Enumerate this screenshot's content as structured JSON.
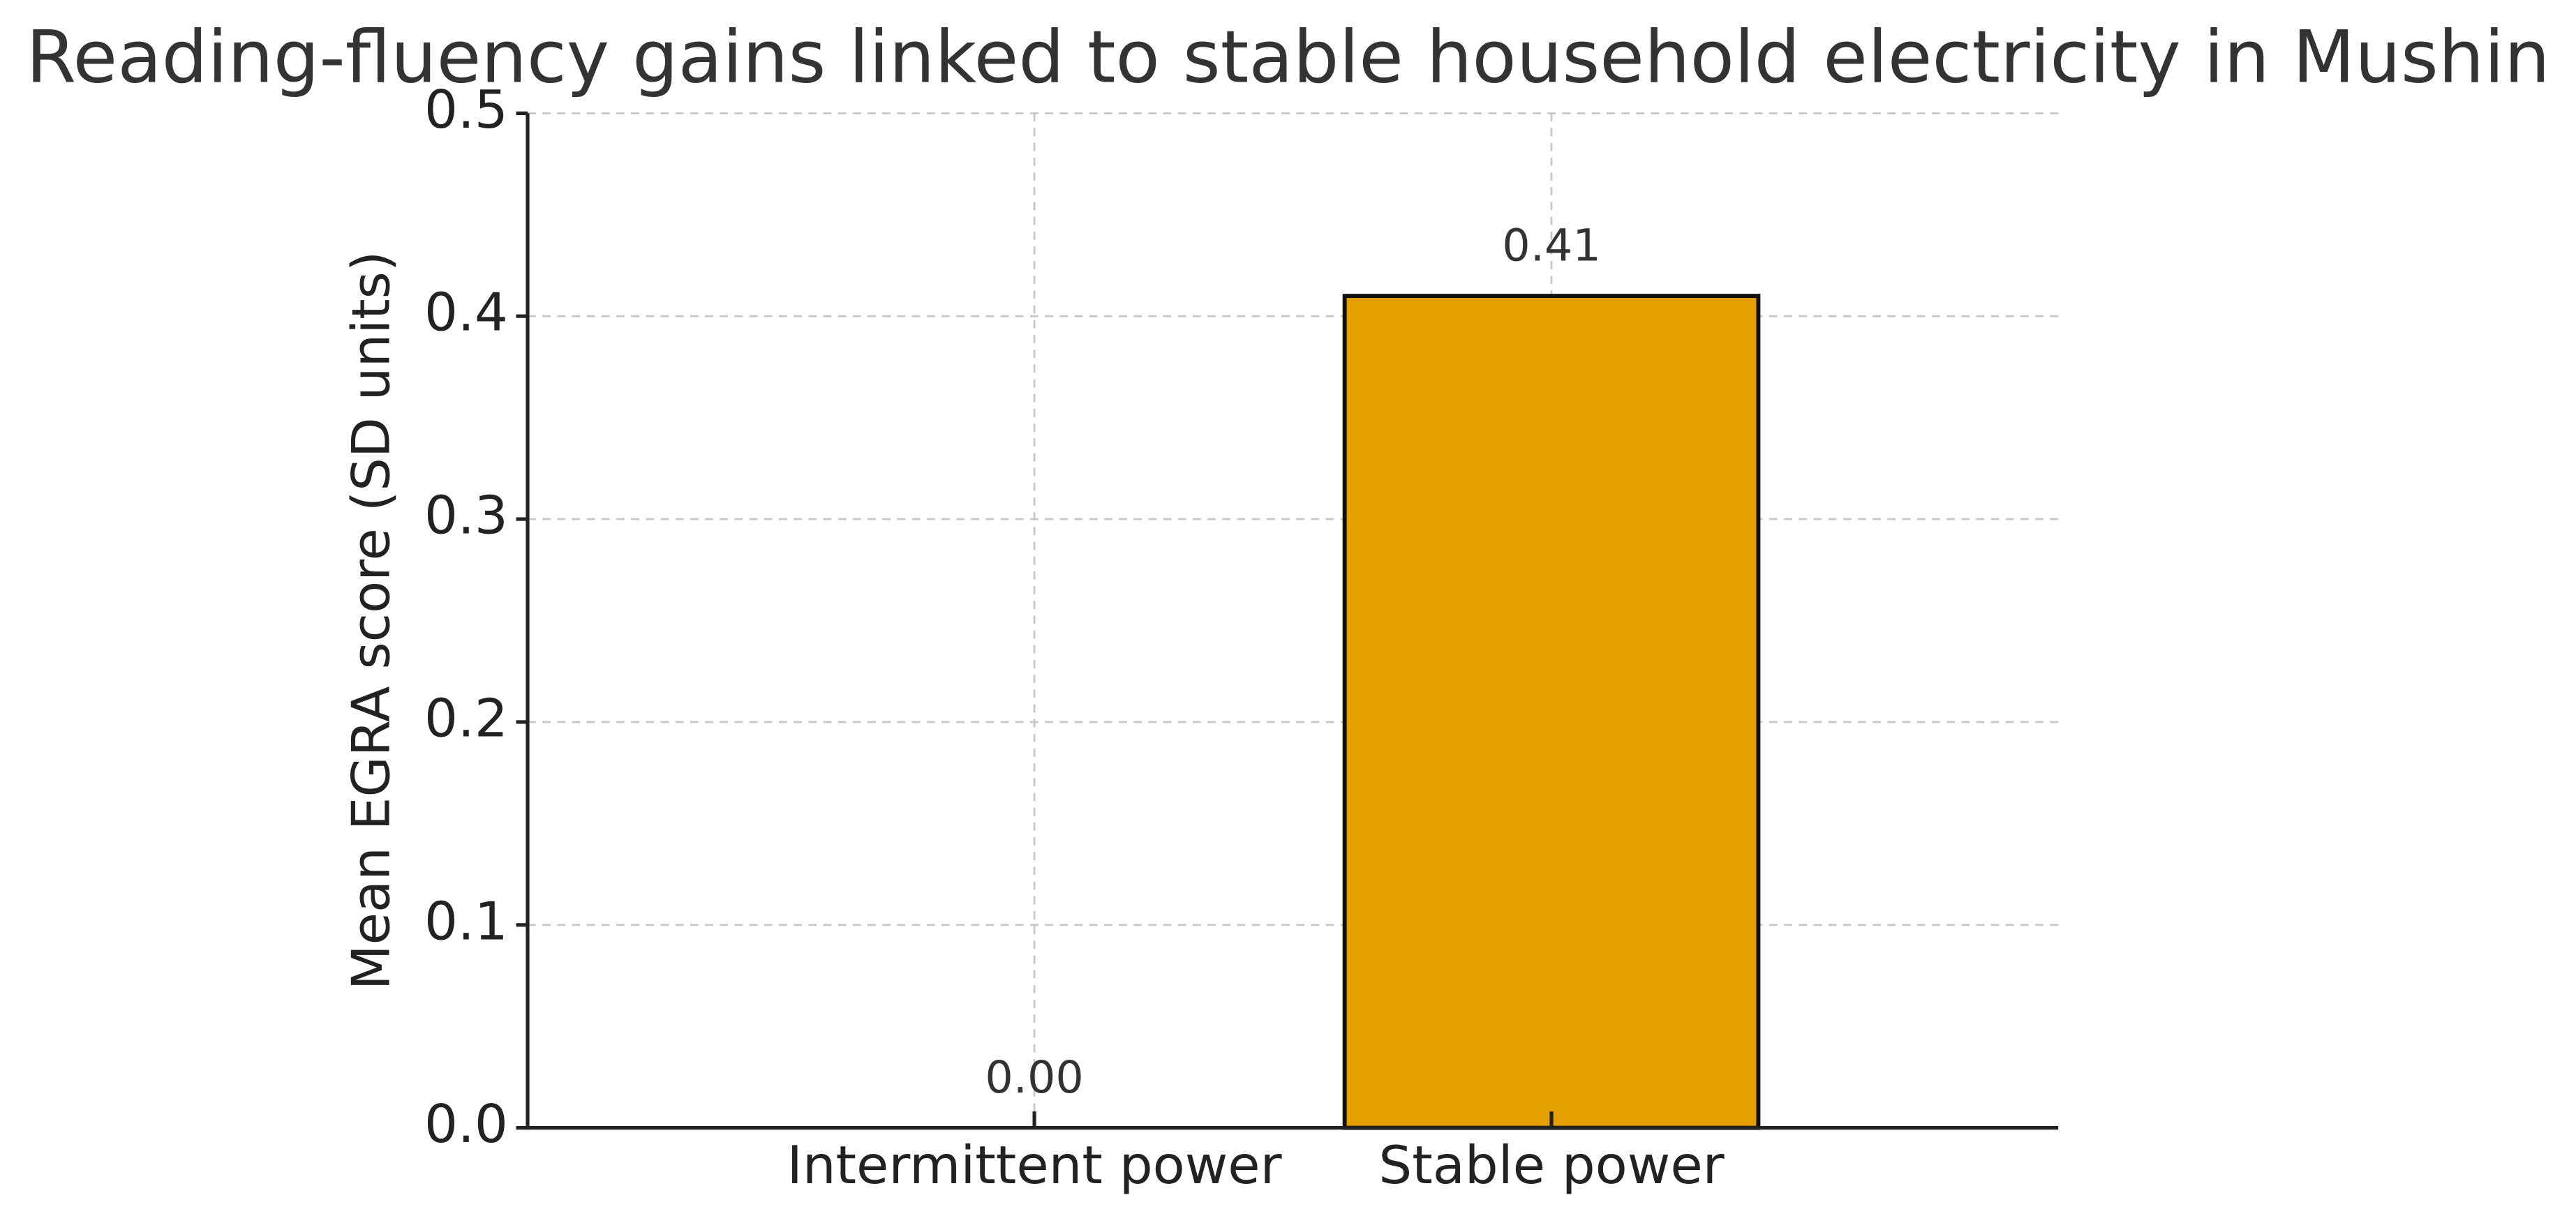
{
  "chart_data": {
    "type": "bar",
    "title": "Reading-fluency gains linked to stable household electricity in Mushin",
    "y_label": "Mean EGRA score (SD units)",
    "categories": [
      "Intermittent power",
      "Stable power"
    ],
    "values": [
      0,
      0.41
    ],
    "value_labels": [
      "0.00",
      "0.41"
    ],
    "color": "#e69f00",
    "ylim": [
      0,
      0.5
    ],
    "yticks": [
      {
        "value": 0,
        "label": "0.0"
      },
      0.1,
      0.2,
      0.3,
      0.4,
      0.5
    ],
    "grid": true
  }
}
